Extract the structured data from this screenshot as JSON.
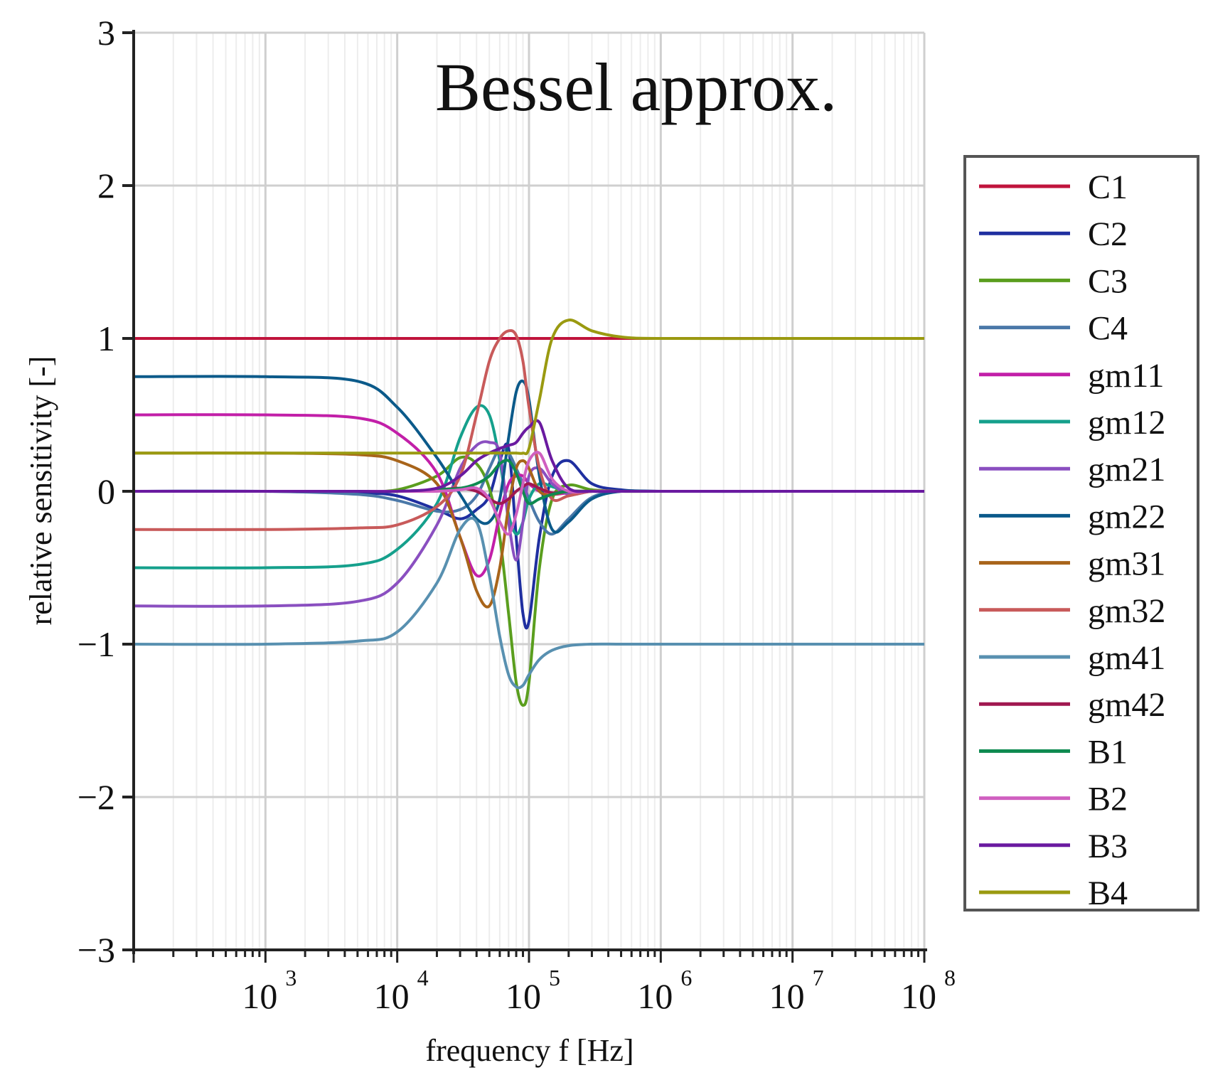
{
  "chart_data": {
    "type": "line",
    "title": "Bessel approx.",
    "xlabel": "frequency f [Hz]",
    "ylabel": "relative sensitivity [-]",
    "x_scale": "log",
    "xlim": [
      100,
      100000000
    ],
    "ylim": [
      -3,
      3
    ],
    "x_ticks": [
      {
        "base": "10",
        "exp": "3",
        "value": 1000
      },
      {
        "base": "10",
        "exp": "4",
        "value": 10000
      },
      {
        "base": "10",
        "exp": "5",
        "value": 100000
      },
      {
        "base": "10",
        "exp": "6",
        "value": 1000000
      },
      {
        "base": "10",
        "exp": "7",
        "value": 10000000
      },
      {
        "base": "10",
        "exp": "8",
        "value": 100000000
      }
    ],
    "y_ticks": [
      "−3",
      "−2",
      "−1",
      "0",
      "1",
      "2",
      "3"
    ],
    "grid": true,
    "legend_position": "right",
    "x": [
      100,
      1000,
      5000,
      10000,
      20000,
      30000,
      40000,
      50000,
      60000,
      70000,
      80000,
      90000,
      100000,
      120000,
      150000,
      200000,
      300000,
      500000,
      1000000,
      10000000,
      100000000
    ],
    "series": [
      {
        "name": "C1",
        "color": "#c0143c",
        "values": [
          1,
          1,
          1,
          1,
          1,
          1,
          1,
          1,
          1,
          1,
          1,
          1,
          1,
          1,
          1,
          1,
          1,
          1,
          1,
          1,
          1
        ]
      },
      {
        "name": "C2",
        "color": "#1f2fa0",
        "values": [
          0,
          0,
          -0.01,
          -0.03,
          -0.12,
          -0.18,
          -0.12,
          -0.03,
          0.2,
          0.28,
          -0.3,
          -0.8,
          -0.85,
          -0.3,
          0.1,
          0.2,
          0.05,
          0.01,
          0,
          0,
          0
        ]
      },
      {
        "name": "C3",
        "color": "#5a9e1e",
        "values": [
          0,
          0,
          0,
          0.01,
          0.1,
          0.22,
          0.18,
          0.02,
          -0.3,
          -0.8,
          -1.25,
          -1.4,
          -1.25,
          -0.5,
          -0.05,
          0.04,
          0.01,
          0,
          0,
          0,
          0
        ]
      },
      {
        "name": "C4",
        "color": "#4a78a8",
        "values": [
          0,
          0,
          -0.02,
          -0.06,
          -0.13,
          -0.12,
          -0.03,
          0.15,
          0.28,
          0.25,
          0.15,
          0.05,
          -0.05,
          -0.2,
          -0.28,
          -0.18,
          -0.04,
          0,
          0,
          0,
          0
        ]
      },
      {
        "name": "gm11",
        "color": "#c21fa8",
        "values": [
          0.5,
          0.5,
          0.48,
          0.38,
          0.12,
          -0.3,
          -0.55,
          -0.45,
          -0.15,
          0.05,
          0.1,
          0.1,
          0.05,
          0,
          -0.02,
          -0.01,
          0,
          0,
          0,
          0,
          0
        ]
      },
      {
        "name": "gm12",
        "color": "#15a08c",
        "values": [
          -0.5,
          -0.5,
          -0.48,
          -0.38,
          -0.08,
          0.35,
          0.55,
          0.5,
          0.2,
          -0.15,
          -0.28,
          -0.2,
          -0.05,
          0.05,
          0.03,
          0,
          0,
          0,
          0,
          0,
          0
        ]
      },
      {
        "name": "gm21",
        "color": "#8a4fc0",
        "values": [
          -0.75,
          -0.75,
          -0.72,
          -0.6,
          -0.22,
          0.15,
          0.3,
          0.32,
          0.25,
          -0.2,
          -0.45,
          -0.2,
          0.1,
          0.15,
          0.05,
          -0.02,
          0,
          0,
          0,
          0,
          0
        ]
      },
      {
        "name": "gm22",
        "color": "#0b5a8a",
        "values": [
          0.75,
          0.75,
          0.72,
          0.55,
          0.22,
          -0.02,
          -0.18,
          -0.2,
          -0.05,
          0.35,
          0.65,
          0.72,
          0.6,
          0.1,
          -0.25,
          -0.2,
          -0.05,
          0,
          0,
          0,
          0
        ]
      },
      {
        "name": "gm31",
        "color": "#a8641a",
        "values": [
          0.25,
          0.25,
          0.24,
          0.2,
          0.05,
          -0.3,
          -0.65,
          -0.75,
          -0.5,
          -0.1,
          0.15,
          0.2,
          0.15,
          0,
          -0.02,
          0,
          0,
          0,
          0,
          0,
          0
        ]
      },
      {
        "name": "gm32",
        "color": "#c85a5a",
        "values": [
          -0.25,
          -0.25,
          -0.24,
          -0.22,
          -0.1,
          0.1,
          0.5,
          0.85,
          1.0,
          1.05,
          1.02,
          0.85,
          0.55,
          0.15,
          -0.05,
          -0.03,
          0,
          0,
          0,
          0,
          0
        ]
      },
      {
        "name": "gm41",
        "color": "#5890b0",
        "values": [
          -1,
          -1,
          -0.98,
          -0.92,
          -0.6,
          -0.25,
          -0.2,
          -0.55,
          -0.95,
          -1.2,
          -1.28,
          -1.27,
          -1.2,
          -1.1,
          -1.04,
          -1.01,
          -1,
          -1,
          -1,
          -1,
          -1
        ]
      },
      {
        "name": "gm42",
        "color": "#a01850",
        "values": [
          0,
          0,
          0,
          0,
          0.01,
          0.02,
          0,
          -0.05,
          -0.08,
          -0.05,
          0,
          0.03,
          0.05,
          0.02,
          -0.01,
          0,
          0,
          0,
          0,
          0,
          0
        ]
      },
      {
        "name": "B1",
        "color": "#0e8a50",
        "values": [
          0,
          0,
          0,
          0,
          0.01,
          0.02,
          0.05,
          0.1,
          0.18,
          0.2,
          0.12,
          0,
          -0.08,
          -0.05,
          -0.02,
          0,
          0,
          0,
          0,
          0,
          0
        ]
      },
      {
        "name": "B2",
        "color": "#d060c0",
        "values": [
          0,
          0,
          0,
          0,
          0,
          0.01,
          0.02,
          -0.05,
          -0.2,
          -0.28,
          -0.15,
          0.05,
          0.2,
          0.25,
          0.08,
          0,
          0,
          0,
          0,
          0,
          0
        ]
      },
      {
        "name": "B3",
        "color": "#6a1aa0",
        "values": [
          0,
          0,
          0,
          0,
          0.02,
          0.1,
          0.2,
          0.25,
          0.28,
          0.3,
          0.32,
          0.38,
          0.42,
          0.45,
          0.2,
          0.02,
          0,
          0,
          0,
          0,
          0
        ]
      },
      {
        "name": "B4",
        "color": "#9a9a10",
        "values": [
          0.25,
          0.25,
          0.25,
          0.25,
          0.25,
          0.25,
          0.25,
          0.25,
          0.25,
          0.25,
          0.25,
          0.25,
          0.28,
          0.6,
          1.0,
          1.12,
          1.05,
          1.01,
          1,
          1,
          1
        ]
      }
    ]
  }
}
